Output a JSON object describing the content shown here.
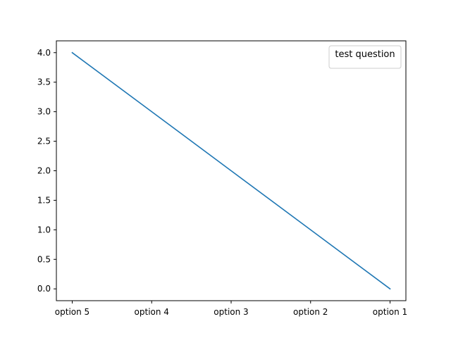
{
  "chart_data": {
    "type": "line",
    "categories": [
      "option 5",
      "option 4",
      "option 3",
      "option 2",
      "option 1"
    ],
    "series": [
      {
        "values": [
          4,
          3,
          2,
          1,
          0
        ],
        "color": "#1f77b4"
      }
    ],
    "y_ticks": [
      "0.0",
      "0.5",
      "1.0",
      "1.5",
      "2.0",
      "2.5",
      "3.0",
      "3.5",
      "4.0"
    ],
    "ylim": [
      -0.2,
      4.2
    ],
    "grid": false,
    "legend": {
      "title": "test question",
      "placement": "upper right"
    }
  }
}
